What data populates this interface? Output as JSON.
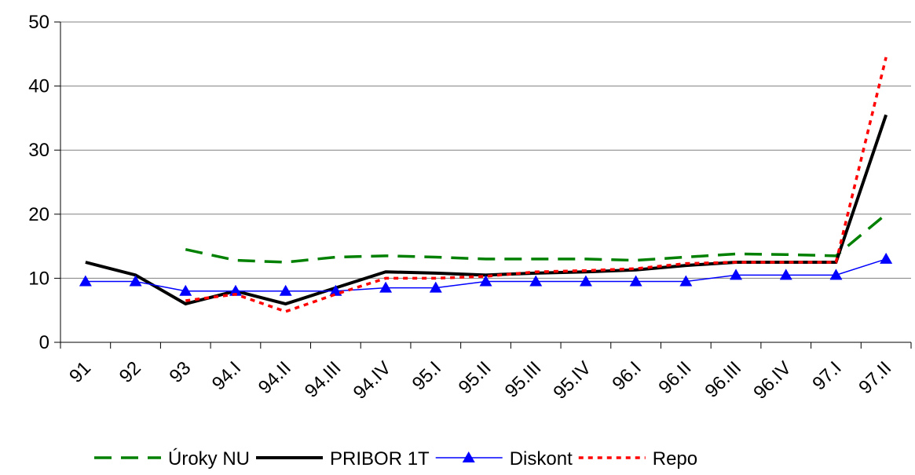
{
  "chart_data": {
    "type": "line",
    "categories": [
      "91",
      "92",
      "93",
      "94.I",
      "94.II",
      "94.III",
      "94.IV",
      "95.I",
      "95.II",
      "95.III",
      "95.IV",
      "96.I",
      "96.II",
      "96.III",
      "96.IV",
      "97.I",
      "97.II"
    ],
    "series": [
      {
        "name": "Úroky NU",
        "color": "#008000",
        "dash": "dashed",
        "values": [
          null,
          null,
          14.5,
          12.8,
          12.5,
          13.3,
          13.5,
          13.3,
          13,
          13,
          13,
          12.8,
          13.3,
          13.8,
          13.7,
          13.5,
          20
        ]
      },
      {
        "name": "PRIBOR 1T",
        "color": "#000000",
        "dash": "solid",
        "values": [
          12.5,
          10.5,
          6,
          8,
          6,
          8.5,
          11,
          10.8,
          10.5,
          10.8,
          11,
          11.3,
          12,
          12.5,
          12.5,
          12.5,
          35.5
        ]
      },
      {
        "name": "Diskont",
        "color": "#0000ff",
        "dash": "solid",
        "marker": "triangle",
        "values": [
          9.5,
          9.5,
          8,
          8,
          8,
          8,
          8.5,
          8.5,
          9.5,
          9.5,
          9.5,
          9.5,
          9.5,
          10.5,
          10.5,
          10.5,
          13
        ]
      },
      {
        "name": "Repo",
        "color": "#ff0000",
        "dash": "dotted",
        "values": [
          null,
          null,
          6.5,
          7.5,
          4.8,
          7.5,
          10,
          10,
          10.3,
          11,
          11.2,
          11.5,
          12.3,
          12.5,
          12.5,
          12.5,
          44.5
        ]
      }
    ],
    "ylim": [
      0,
      50
    ],
    "yticks": [
      0,
      10,
      20,
      30,
      40,
      50
    ],
    "grid": true,
    "legend": "bottom"
  }
}
